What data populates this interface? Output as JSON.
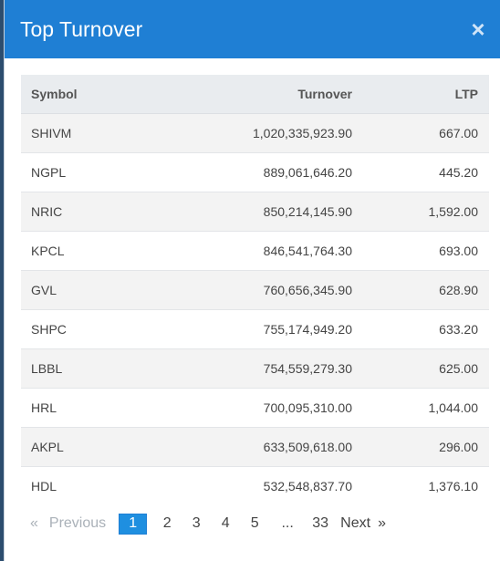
{
  "modal": {
    "title": "Top Turnover",
    "close_label": "×"
  },
  "table": {
    "headers": {
      "symbol": "Symbol",
      "turnover": "Turnover",
      "ltp": "LTP"
    },
    "rows": [
      {
        "symbol": "SHIVM",
        "turnover": "1,020,335,923.90",
        "ltp": "667.00"
      },
      {
        "symbol": "NGPL",
        "turnover": "889,061,646.20",
        "ltp": "445.20"
      },
      {
        "symbol": "NRIC",
        "turnover": "850,214,145.90",
        "ltp": "1,592.00"
      },
      {
        "symbol": "KPCL",
        "turnover": "846,541,764.30",
        "ltp": "693.00"
      },
      {
        "symbol": "GVL",
        "turnover": "760,656,345.90",
        "ltp": "628.90"
      },
      {
        "symbol": "SHPC",
        "turnover": "755,174,949.20",
        "ltp": "633.20"
      },
      {
        "symbol": "LBBL",
        "turnover": "754,559,279.30",
        "ltp": "625.00"
      },
      {
        "symbol": "HRL",
        "turnover": "700,095,310.00",
        "ltp": "1,044.00"
      },
      {
        "symbol": "AKPL",
        "turnover": "633,509,618.00",
        "ltp": "296.00"
      },
      {
        "symbol": "HDL",
        "turnover": "532,548,837.70",
        "ltp": "1,376.10"
      }
    ]
  },
  "pagination": {
    "prev_arrow": "«",
    "previous": "Previous",
    "pages": [
      "1",
      "2",
      "3",
      "4",
      "5"
    ],
    "active_page": "1",
    "ellipsis": "...",
    "last_page": "33",
    "next": "Next",
    "next_arrow": "»"
  },
  "colors": {
    "header_bg": "#1f7fd4",
    "active_page_bg": "#1f8fe0"
  }
}
